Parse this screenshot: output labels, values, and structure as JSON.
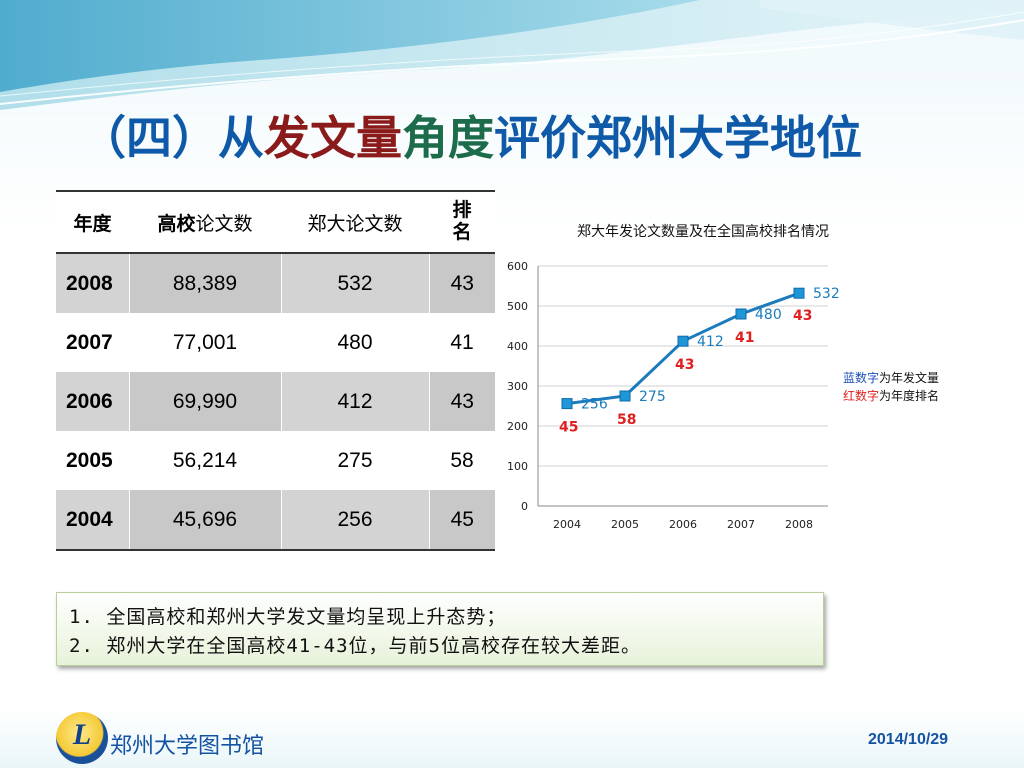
{
  "slide": {
    "title_parts": [
      {
        "text": "（四）从",
        "color": "#0e5aa8"
      },
      {
        "text": "发文量",
        "color": "#8b1a1a"
      },
      {
        "text": "角度",
        "color": "#1c6b4a"
      },
      {
        "text": "评价郑州大学地位",
        "color": "#0e5aa8"
      }
    ],
    "library_name": "郑州大学图书馆",
    "logo_letter": "L",
    "date": "2014/10/29"
  },
  "table": {
    "headers": [
      "年度",
      "高校论文数",
      "郑大论文数",
      "排名"
    ],
    "rows": [
      {
        "year": "2008",
        "national": "88,389",
        "zzu": "532",
        "rank": "43"
      },
      {
        "year": "2007",
        "national": "77,001",
        "zzu": "480",
        "rank": "41"
      },
      {
        "year": "2006",
        "national": "69,990",
        "zzu": "412",
        "rank": "43"
      },
      {
        "year": "2005",
        "national": "56,214",
        "zzu": "275",
        "rank": "58"
      },
      {
        "year": "2004",
        "national": "45,696",
        "zzu": "256",
        "rank": "45"
      }
    ]
  },
  "chart_data": {
    "type": "line",
    "title": "郑大年发论文数量及在全国高校排名情况",
    "x": [
      "2004",
      "2005",
      "2006",
      "2007",
      "2008"
    ],
    "series": [
      {
        "values": [
          256,
          275,
          412,
          480,
          532
        ],
        "color": "#1b7bbd"
      }
    ],
    "rank_labels": [
      45,
      58,
      43,
      41,
      43
    ],
    "rank_color": "#e02020",
    "ylim": [
      0,
      600
    ],
    "yticks": [
      0,
      100,
      200,
      300,
      400,
      500,
      600
    ],
    "grid": true,
    "legend": {
      "line1_colored": "蓝数字",
      "line1_rest": "为年发文量",
      "line1_color": "#1b4fb8",
      "line2_colored": "红数字",
      "line2_rest": "为年度排名",
      "line2_color": "#e02020"
    }
  },
  "notes": [
    "1.  全国高校和郑州大学发文量均呈现上升态势；",
    "2.  郑州大学在全国高校41-43位，与前5位高校存在较大差距。"
  ]
}
